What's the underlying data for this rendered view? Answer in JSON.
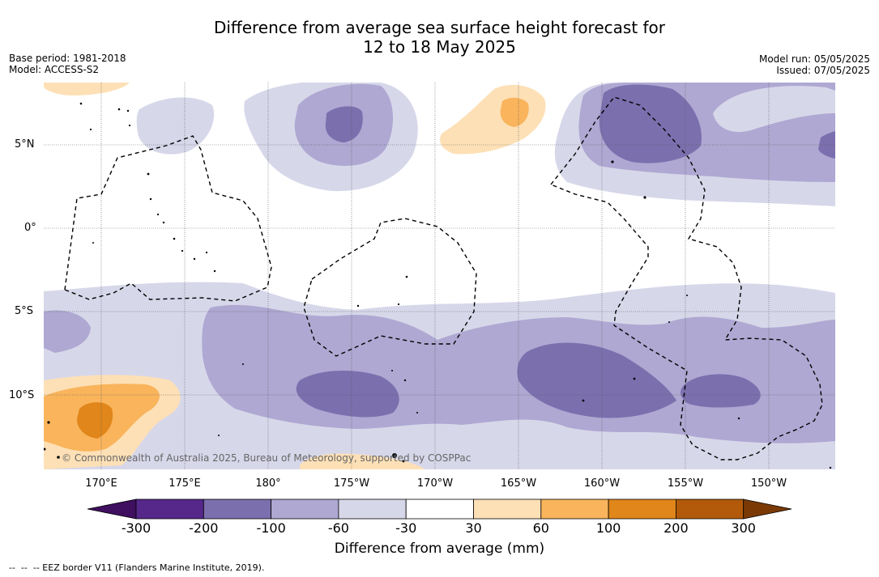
{
  "title_line1": "Difference from average sea surface height forecast for",
  "title_line2": "12 to 18 May 2025",
  "base_period": "Base period: 1981-2018",
  "model": "Model: ACCESS-S2",
  "model_run": "Model run: 05/05/2025",
  "issued": "Issued: 07/05/2025",
  "copyright": "© Commonwealth of Australia 2025, Bureau of Meteorology, supported by COSPPac",
  "lat_labels": [
    "5°N",
    "0°",
    "5°S",
    "10°S"
  ],
  "lon_labels": [
    "170°E",
    "175°E",
    "180°",
    "175°W",
    "170°W",
    "165°W",
    "160°W",
    "155°W",
    "150°W"
  ],
  "colorbar": {
    "title": "Difference from average (mm)",
    "ticks": [
      "-300",
      "-200",
      "-100",
      "-60",
      "-30",
      "30",
      "60",
      "100",
      "200",
      "300"
    ],
    "colors": [
      "#3f0f60",
      "#55288a",
      "#7c6fae",
      "#aea8d2",
      "#d7d7ea",
      "#ffffff",
      "#fde0b6",
      "#f9b45c",
      "#e0861a",
      "#b25a0a",
      "#7b3a05"
    ]
  },
  "footnote": "--  --  -- EEZ border V11 (Flanders Marine Institute, 2019)."
}
